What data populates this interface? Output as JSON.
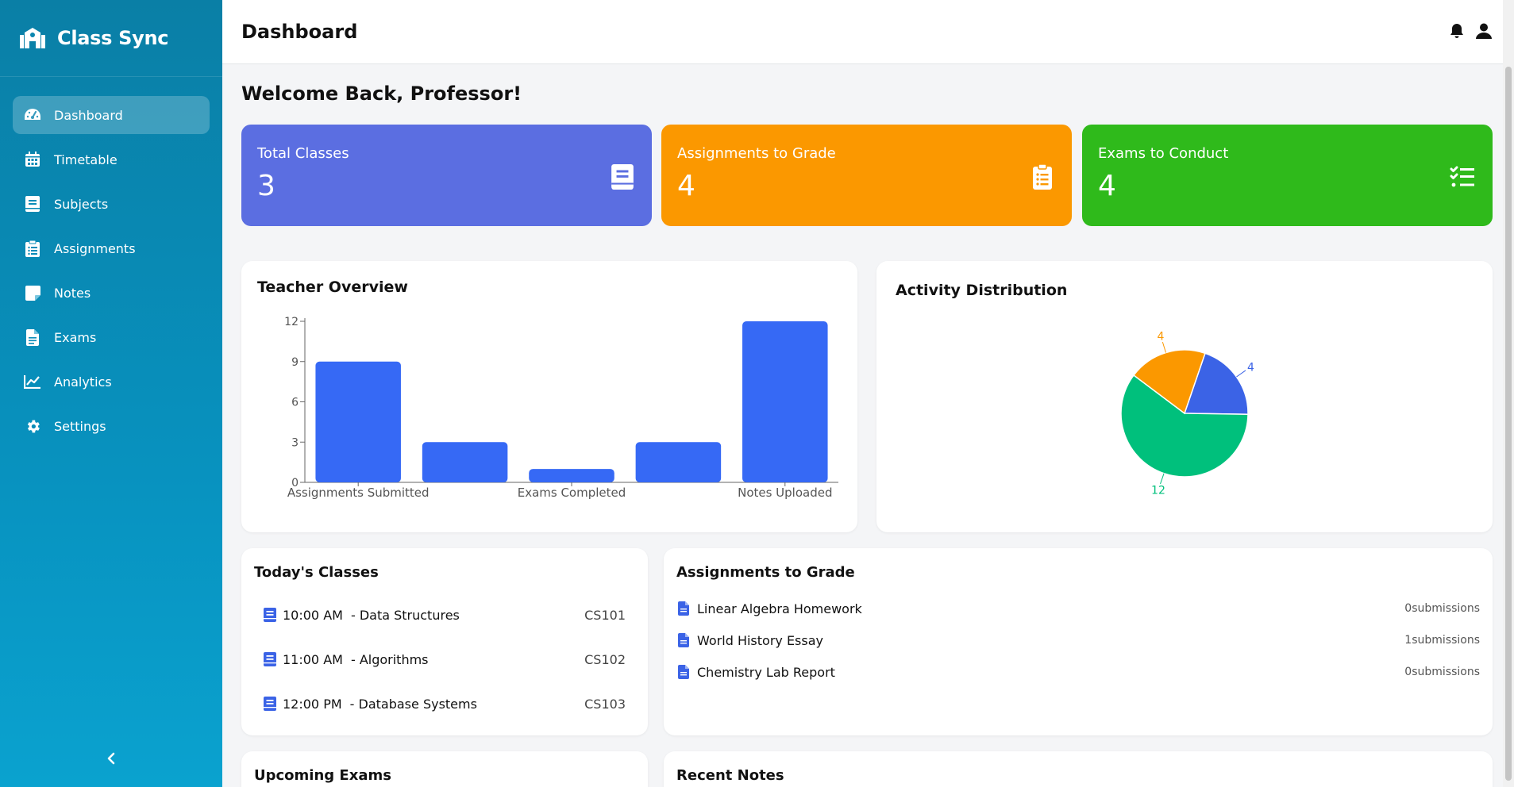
{
  "brand": {
    "title": "Class Sync"
  },
  "sidebar": {
    "items": [
      {
        "label": "Dashboard",
        "icon": "dashboard-gauge-icon",
        "active": true
      },
      {
        "label": "Timetable",
        "icon": "calendar-icon"
      },
      {
        "label": "Subjects",
        "icon": "book-icon"
      },
      {
        "label": "Assignments",
        "icon": "clipboard-list-icon"
      },
      {
        "label": "Notes",
        "icon": "sticky-note-icon"
      },
      {
        "label": "Exams",
        "icon": "document-icon"
      },
      {
        "label": "Analytics",
        "icon": "line-chart-icon"
      },
      {
        "label": "Settings",
        "icon": "gear-icon"
      }
    ],
    "collapse_icon": "chevron-left-icon"
  },
  "header": {
    "title": "Dashboard",
    "icons": [
      "bell-icon",
      "user-icon"
    ]
  },
  "welcome": "Welcome Back, Professor!",
  "stats": [
    {
      "label": "Total Classes",
      "value": "3",
      "color": "#5b6ee1",
      "icon": "book-icon"
    },
    {
      "label": "Assignments to Grade",
      "value": "4",
      "color": "#fb9800",
      "icon": "clipboard-list-icon"
    },
    {
      "label": "Exams to Conduct",
      "value": "4",
      "color": "#2fba1b",
      "icon": "checklist-icon"
    }
  ],
  "teacher_overview": {
    "title": "Teacher Overview"
  },
  "activity_distribution": {
    "title": "Activity Distribution"
  },
  "chart_data": [
    {
      "type": "bar",
      "title": "Teacher Overview",
      "categories": [
        "Assignments Submitted",
        "",
        "Exams Completed",
        "",
        "Notes Uploaded"
      ],
      "values": [
        9,
        3,
        1,
        3,
        12
      ],
      "ylim": [
        0,
        12
      ],
      "yticks": [
        0,
        3,
        6,
        9,
        12
      ],
      "color": "#3669f5",
      "grid": false
    },
    {
      "type": "pie",
      "title": "Activity Distribution",
      "slices": [
        {
          "value": 4,
          "color": "#3b63e6"
        },
        {
          "value": 12,
          "color": "#00c07c"
        },
        {
          "value": 4,
          "color": "#fb9800"
        }
      ]
    }
  ],
  "todays_classes": {
    "title": "Today's Classes",
    "items": [
      {
        "time": "10:00 AM",
        "name": "- Data Structures",
        "code": "CS101"
      },
      {
        "time": "11:00 AM",
        "name": "- Algorithms",
        "code": "CS102"
      },
      {
        "time": "12:00 PM",
        "name": "- Database Systems",
        "code": "CS103"
      }
    ]
  },
  "assignments_to_grade": {
    "title": "Assignments to Grade",
    "items": [
      {
        "name": "Linear Algebra Homework",
        "submissions": "0submissions"
      },
      {
        "name": "World History Essay",
        "submissions": "1submissions"
      },
      {
        "name": "Chemistry Lab Report",
        "submissions": "0submissions"
      }
    ]
  },
  "upcoming_exams": {
    "title": "Upcoming Exams"
  },
  "recent_notes": {
    "title": "Recent Notes"
  }
}
